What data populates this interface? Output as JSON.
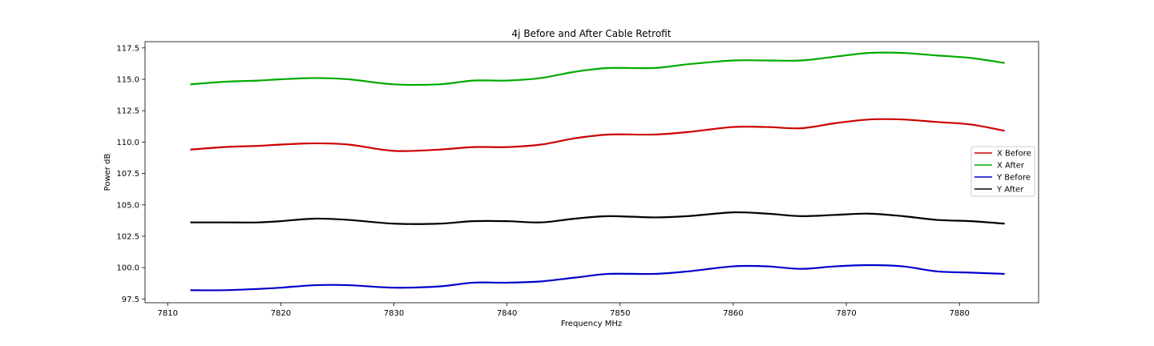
{
  "chart_data": {
    "type": "line",
    "title": "4j Before and After Cable Retrofit",
    "xlabel": "Frequency MHz",
    "ylabel": "Power dB",
    "xlim": [
      7808,
      7887
    ],
    "ylim": [
      97.2,
      118.0
    ],
    "xticks": [
      7810,
      7820,
      7830,
      7840,
      7850,
      7860,
      7870,
      7880
    ],
    "yticks": [
      97.5,
      100.0,
      102.5,
      105.0,
      107.5,
      110.0,
      112.5,
      115.0,
      117.5
    ],
    "grid": false,
    "legend_position": "center-right",
    "x": [
      7812,
      7815,
      7818,
      7820,
      7823,
      7826,
      7830,
      7834,
      7837,
      7840,
      7843,
      7846,
      7849,
      7853,
      7856,
      7860,
      7863,
      7866,
      7869,
      7872,
      7875,
      7878,
      7881,
      7884
    ],
    "series": [
      {
        "name": "X Before",
        "color": "#cc0000",
        "values": [
          109.4,
          109.6,
          109.7,
          109.8,
          109.9,
          109.8,
          109.3,
          109.4,
          109.6,
          109.6,
          109.8,
          110.3,
          110.6,
          110.6,
          110.8,
          111.2,
          111.2,
          111.1,
          111.5,
          111.8,
          111.8,
          111.6,
          111.4,
          110.9
        ]
      },
      {
        "name": "X After",
        "color": "#00aa00",
        "values": [
          114.6,
          114.8,
          114.9,
          115.0,
          115.1,
          115.0,
          114.6,
          114.6,
          114.9,
          114.9,
          115.1,
          115.6,
          115.9,
          115.9,
          116.2,
          116.5,
          116.5,
          116.5,
          116.8,
          117.1,
          117.1,
          116.9,
          116.7,
          116.3
        ]
      },
      {
        "name": "Y Before",
        "color": "#0000cc",
        "values": [
          98.2,
          98.2,
          98.3,
          98.4,
          98.6,
          98.6,
          98.4,
          98.5,
          98.8,
          98.8,
          98.9,
          99.2,
          99.5,
          99.5,
          99.7,
          100.1,
          100.1,
          99.9,
          100.1,
          100.2,
          100.1,
          99.7,
          99.6,
          99.5
        ]
      },
      {
        "name": "Y After",
        "color": "#000000",
        "values": [
          103.6,
          103.6,
          103.6,
          103.7,
          103.9,
          103.8,
          103.5,
          103.5,
          103.7,
          103.7,
          103.6,
          103.9,
          104.1,
          104.0,
          104.1,
          104.4,
          104.3,
          104.1,
          104.2,
          104.3,
          104.1,
          103.8,
          103.7,
          103.5
        ]
      }
    ]
  }
}
